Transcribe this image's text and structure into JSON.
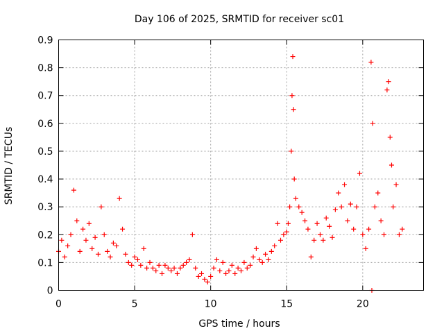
{
  "chart_data": {
    "type": "scatter",
    "title": "Day 106 of 2025, SRMTID for receiver sc01",
    "xlabel": "GPS time / hours",
    "ylabel": "SRMTID / TECUs",
    "xlim": [
      0,
      24
    ],
    "ylim": [
      0,
      0.9
    ],
    "xticks": [
      0,
      5,
      10,
      15,
      20
    ],
    "yticks": [
      0,
      0.1,
      0.2,
      0.3,
      0.4,
      0.5,
      0.6,
      0.7,
      0.8,
      0.9
    ],
    "grid": true,
    "legend": "none",
    "marker": "+",
    "series": [
      {
        "name": "sc01",
        "color": "#ff0000",
        "x": [
          0.0,
          0.2,
          0.4,
          0.6,
          0.8,
          1.0,
          1.2,
          1.4,
          1.6,
          1.8,
          2.0,
          2.2,
          2.4,
          2.6,
          2.8,
          3.0,
          3.2,
          3.4,
          3.6,
          3.8,
          4.0,
          4.2,
          4.4,
          4.6,
          4.8,
          5.0,
          5.2,
          5.4,
          5.6,
          5.8,
          6.0,
          6.2,
          6.4,
          6.6,
          6.8,
          7.0,
          7.2,
          7.4,
          7.6,
          7.8,
          8.0,
          8.2,
          8.4,
          8.6,
          8.8,
          9.0,
          9.2,
          9.4,
          9.6,
          9.8,
          10.0,
          10.2,
          10.4,
          10.6,
          10.8,
          11.0,
          11.2,
          11.4,
          11.6,
          11.8,
          12.0,
          12.2,
          12.4,
          12.6,
          12.8,
          13.0,
          13.2,
          13.4,
          13.6,
          13.8,
          14.0,
          14.2,
          14.4,
          14.6,
          14.8,
          15.0,
          15.1,
          15.2,
          15.3,
          15.35,
          15.4,
          15.45,
          15.5,
          15.6,
          15.8,
          16.0,
          16.2,
          16.4,
          16.6,
          16.8,
          17.0,
          17.2,
          17.4,
          17.6,
          17.8,
          18.0,
          18.2,
          18.4,
          18.6,
          18.8,
          19.0,
          19.2,
          19.4,
          19.6,
          19.8,
          20.0,
          20.2,
          20.4,
          20.55,
          20.6,
          20.65,
          20.8,
          21.0,
          21.2,
          21.4,
          21.6,
          21.7,
          21.8,
          21.9,
          22.0,
          22.2,
          22.4,
          22.6
        ],
        "y": [
          0.14,
          0.18,
          0.12,
          0.16,
          0.2,
          0.36,
          0.25,
          0.14,
          0.22,
          0.18,
          0.24,
          0.15,
          0.19,
          0.13,
          0.3,
          0.2,
          0.14,
          0.12,
          0.17,
          0.16,
          0.33,
          0.22,
          0.13,
          0.1,
          0.09,
          0.12,
          0.11,
          0.09,
          0.15,
          0.08,
          0.1,
          0.08,
          0.07,
          0.09,
          0.06,
          0.09,
          0.08,
          0.07,
          0.08,
          0.06,
          0.08,
          0.09,
          0.1,
          0.11,
          0.2,
          0.08,
          0.05,
          0.06,
          0.04,
          0.03,
          0.05,
          0.08,
          0.11,
          0.07,
          0.1,
          0.06,
          0.07,
          0.09,
          0.06,
          0.08,
          0.07,
          0.1,
          0.08,
          0.09,
          0.12,
          0.15,
          0.11,
          0.1,
          0.13,
          0.11,
          0.14,
          0.16,
          0.24,
          0.18,
          0.2,
          0.21,
          0.24,
          0.3,
          0.5,
          0.7,
          0.84,
          0.65,
          0.4,
          0.33,
          0.3,
          0.28,
          0.25,
          0.22,
          0.12,
          0.18,
          0.24,
          0.2,
          0.18,
          0.26,
          0.23,
          0.19,
          0.29,
          0.35,
          0.3,
          0.38,
          0.25,
          0.31,
          0.22,
          0.3,
          0.42,
          0.2,
          0.15,
          0.22,
          0.82,
          0.0,
          0.6,
          0.3,
          0.35,
          0.25,
          0.2,
          0.72,
          0.75,
          0.55,
          0.45,
          0.3,
          0.38,
          0.2,
          0.22
        ]
      }
    ]
  }
}
